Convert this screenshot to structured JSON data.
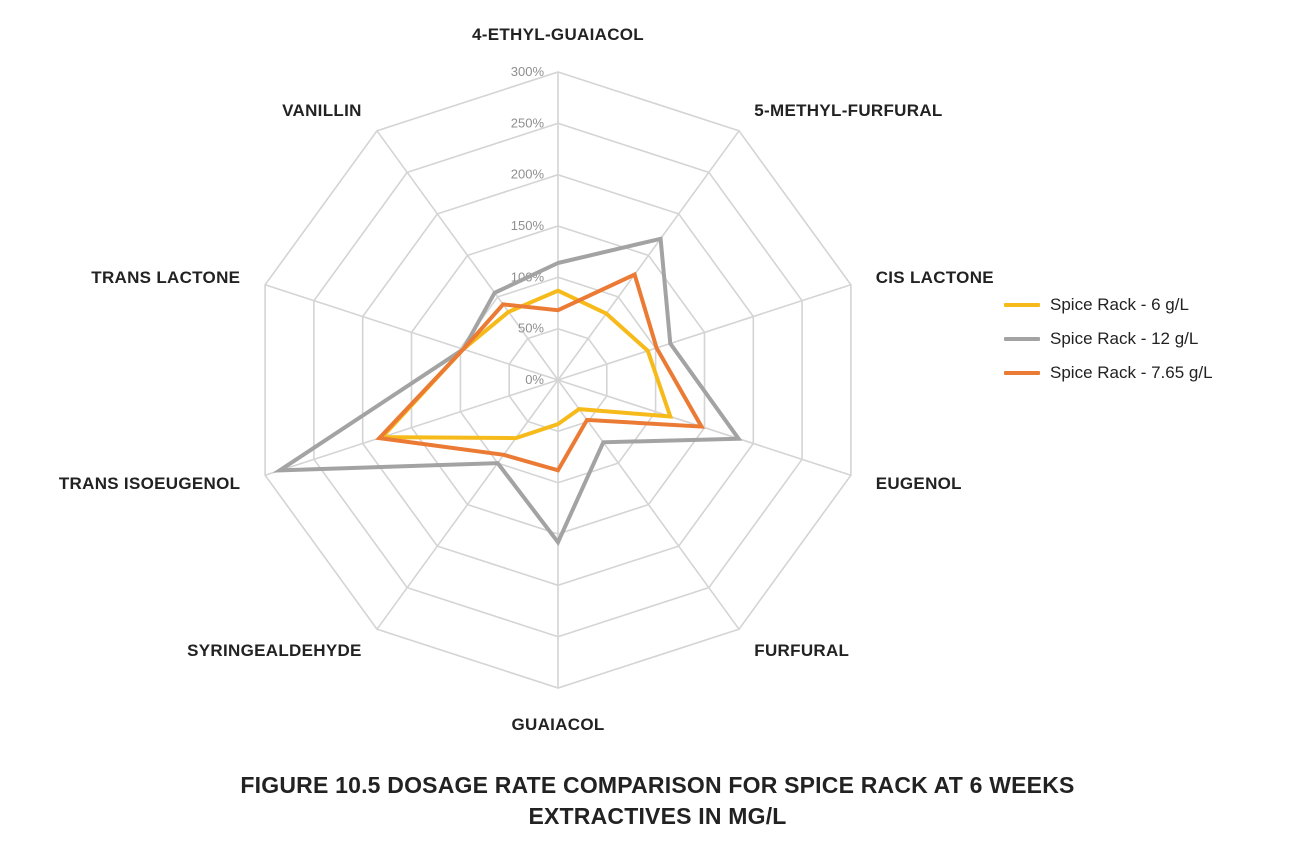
{
  "chart_data": {
    "type": "radar",
    "title": "",
    "axes": [
      "4-ETHYL-GUAIACOL",
      "5-METHYL-FURFURAL",
      "CIS LACTONE",
      "EUGENOL",
      "FURFURAL",
      "GUAIACOL",
      "SYRINGEALDEHYDE",
      "TRANS ISOEUGENOL",
      "TRANS LACTONE",
      "VANILLIN"
    ],
    "rlim": [
      0,
      300
    ],
    "ticks": [
      0,
      50,
      100,
      150,
      200,
      250,
      300
    ],
    "tick_labels": [
      "0%",
      "50%",
      "100%",
      "150%",
      "200%",
      "250%",
      "300%"
    ],
    "series": [
      {
        "name": "Spice Rack - 6 g/L",
        "color": "#f6bb1a",
        "values": [
          87,
          80,
          92,
          115,
          35,
          43,
          70,
          180,
          97,
          82
        ]
      },
      {
        "name": "Spice Rack - 12 g/L",
        "color": "#a3a3a3",
        "values": [
          114,
          170,
          115,
          185,
          75,
          158,
          100,
          285,
          97,
          105
        ]
      },
      {
        "name": "Spice Rack - 7.65 g/L",
        "color": "#eb7b34",
        "values": [
          68,
          127,
          101,
          147,
          48,
          88,
          90,
          183,
          97,
          91
        ]
      }
    ],
    "grid": true,
    "legend": "right"
  },
  "caption": {
    "line1": "FIGURE 10.5  DOSAGE RATE COMPARISON FOR SPICE RACK AT 6 WEEKS",
    "line2": "EXTRACTIVES IN MG/L"
  }
}
